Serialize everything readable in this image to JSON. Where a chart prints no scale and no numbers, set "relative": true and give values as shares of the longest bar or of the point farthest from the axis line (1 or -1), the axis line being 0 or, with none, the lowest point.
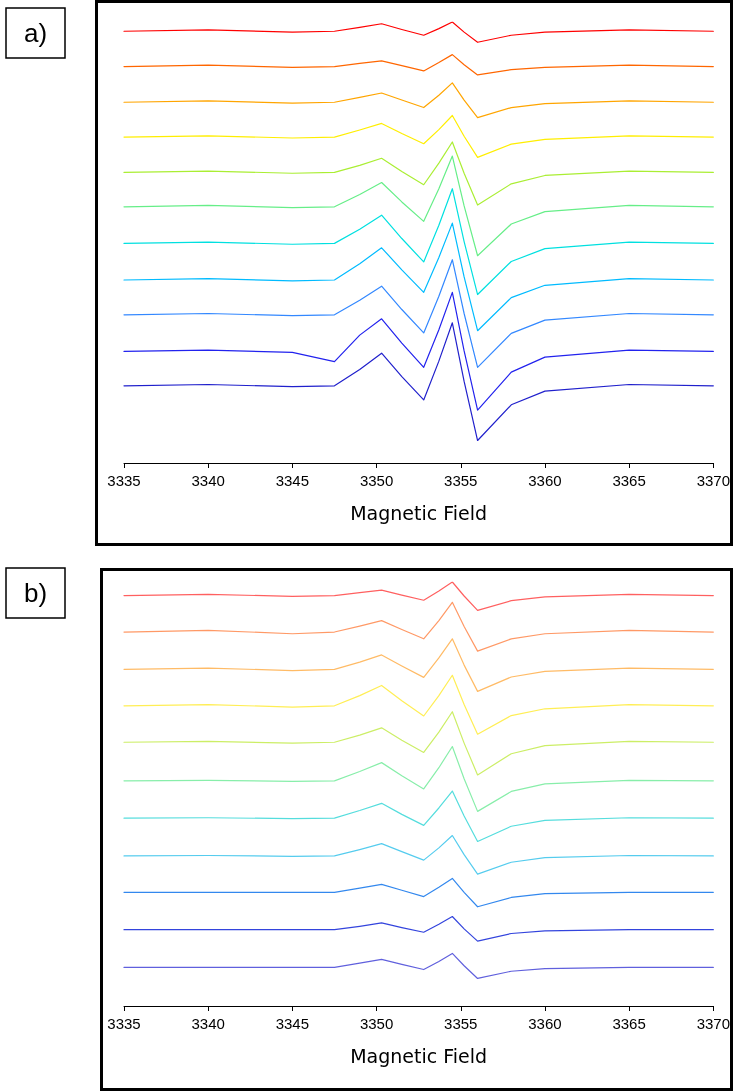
{
  "chart_data": [
    {
      "type": "line",
      "title": "a)",
      "xlabel": "Magnetic Field",
      "relative": true,
      "xlim": [
        3335,
        3370
      ],
      "xticks": [
        3335,
        3340,
        3345,
        3350,
        3355,
        3360,
        3365,
        3370
      ],
      "x": [
        3335,
        3340,
        3345,
        3347.5,
        3349,
        3350.3,
        3351.5,
        3352.8,
        3353.7,
        3354.5,
        3355.2,
        3356,
        3358,
        3360,
        3365,
        3370
      ],
      "series": [
        {
          "color": "#ff0000",
          "values": [
            0.979,
            0.982,
            0.977,
            0.979,
            0.988,
            0.996,
            0.983,
            0.97,
            0.985,
            1.0,
            0.977,
            0.954,
            0.97,
            0.977,
            0.982,
            0.979
          ]
        },
        {
          "color": "#ff6600",
          "values": [
            0.899,
            0.902,
            0.897,
            0.899,
            0.906,
            0.912,
            0.901,
            0.889,
            0.908,
            0.926,
            0.903,
            0.88,
            0.892,
            0.897,
            0.902,
            0.899
          ]
        },
        {
          "color": "#ffa500",
          "values": [
            0.818,
            0.821,
            0.816,
            0.818,
            0.829,
            0.839,
            0.823,
            0.806,
            0.834,
            0.862,
            0.823,
            0.783,
            0.806,
            0.815,
            0.821,
            0.818
          ]
        },
        {
          "color": "#ffee00",
          "values": [
            0.739,
            0.742,
            0.737,
            0.739,
            0.755,
            0.77,
            0.747,
            0.724,
            0.756,
            0.788,
            0.741,
            0.693,
            0.723,
            0.734,
            0.742,
            0.739
          ]
        },
        {
          "color": "#aaee33",
          "values": [
            0.659,
            0.662,
            0.657,
            0.659,
            0.675,
            0.691,
            0.661,
            0.631,
            0.68,
            0.728,
            0.657,
            0.585,
            0.633,
            0.652,
            0.662,
            0.659
          ]
        },
        {
          "color": "#66ee88",
          "values": [
            0.581,
            0.584,
            0.579,
            0.581,
            0.609,
            0.636,
            0.592,
            0.548,
            0.622,
            0.696,
            0.583,
            0.47,
            0.542,
            0.57,
            0.584,
            0.581
          ]
        },
        {
          "color": "#00e0e0",
          "values": [
            0.498,
            0.501,
            0.496,
            0.498,
            0.53,
            0.562,
            0.509,
            0.456,
            0.539,
            0.622,
            0.502,
            0.382,
            0.457,
            0.486,
            0.501,
            0.498
          ]
        },
        {
          "color": "#00bbff",
          "values": [
            0.415,
            0.418,
            0.413,
            0.415,
            0.452,
            0.488,
            0.438,
            0.387,
            0.466,
            0.544,
            0.422,
            0.3,
            0.375,
            0.403,
            0.418,
            0.415
          ]
        },
        {
          "color": "#3388ff",
          "values": [
            0.336,
            0.339,
            0.334,
            0.336,
            0.369,
            0.401,
            0.348,
            0.295,
            0.378,
            0.461,
            0.339,
            0.217,
            0.294,
            0.324,
            0.339,
            0.336
          ]
        },
        {
          "color": "#2222ee",
          "values": [
            0.253,
            0.256,
            0.251,
            0.23,
            0.29,
            0.327,
            0.272,
            0.217,
            0.302,
            0.387,
            0.254,
            0.12,
            0.206,
            0.24,
            0.256,
            0.253
          ]
        },
        {
          "color": "#2020cc",
          "values": [
            0.175,
            0.178,
            0.173,
            0.175,
            0.212,
            0.249,
            0.196,
            0.143,
            0.231,
            0.318,
            0.185,
            0.051,
            0.132,
            0.163,
            0.178,
            0.175
          ]
        }
      ]
    },
    {
      "type": "line",
      "title": "b)",
      "xlabel": "Magnetic Field",
      "relative": true,
      "xlim": [
        3335,
        3370
      ],
      "xticks": [
        3335,
        3340,
        3345,
        3350,
        3355,
        3360,
        3365,
        3370
      ],
      "x": [
        3335,
        3340,
        3345,
        3347.5,
        3349,
        3350.3,
        3351.5,
        3352.8,
        3353.7,
        3354.5,
        3355.2,
        3356,
        3358,
        3360,
        3365,
        3370
      ],
      "series": [
        {
          "color": "#ff6060",
          "values": [
            0.968,
            0.971,
            0.966,
            0.968,
            0.975,
            0.981,
            0.969,
            0.957,
            0.979,
            1.0,
            0.967,
            0.933,
            0.956,
            0.965,
            0.971,
            0.968
          ]
        },
        {
          "color": "#ff9966",
          "values": [
            0.882,
            0.886,
            0.878,
            0.882,
            0.896,
            0.909,
            0.888,
            0.866,
            0.909,
            0.952,
            0.895,
            0.837,
            0.866,
            0.878,
            0.886,
            0.882
          ]
        },
        {
          "color": "#ffbb66",
          "values": [
            0.794,
            0.797,
            0.791,
            0.794,
            0.811,
            0.828,
            0.802,
            0.775,
            0.821,
            0.866,
            0.804,
            0.742,
            0.776,
            0.789,
            0.797,
            0.794
          ]
        },
        {
          "color": "#ffee55",
          "values": [
            0.708,
            0.711,
            0.705,
            0.708,
            0.732,
            0.756,
            0.72,
            0.684,
            0.732,
            0.78,
            0.711,
            0.641,
            0.685,
            0.701,
            0.711,
            0.708
          ]
        },
        {
          "color": "#ccee66",
          "values": [
            0.622,
            0.624,
            0.62,
            0.622,
            0.639,
            0.656,
            0.627,
            0.598,
            0.646,
            0.694,
            0.62,
            0.545,
            0.595,
            0.614,
            0.624,
            0.622
          ]
        },
        {
          "color": "#88eeaa",
          "values": [
            0.531,
            0.532,
            0.53,
            0.531,
            0.553,
            0.574,
            0.543,
            0.512,
            0.562,
            0.612,
            0.536,
            0.459,
            0.506,
            0.524,
            0.532,
            0.531
          ]
        },
        {
          "color": "#55dddd",
          "values": [
            0.443,
            0.444,
            0.442,
            0.443,
            0.461,
            0.478,
            0.452,
            0.426,
            0.467,
            0.507,
            0.448,
            0.388,
            0.424,
            0.438,
            0.444,
            0.443
          ]
        },
        {
          "color": "#55ccee",
          "values": [
            0.354,
            0.355,
            0.353,
            0.354,
            0.369,
            0.383,
            0.364,
            0.344,
            0.373,
            0.402,
            0.357,
            0.311,
            0.339,
            0.35,
            0.355,
            0.354
          ]
        },
        {
          "color": "#3388ee",
          "values": [
            0.268,
            0.268,
            0.268,
            0.268,
            0.278,
            0.287,
            0.273,
            0.258,
            0.28,
            0.301,
            0.268,
            0.234,
            0.256,
            0.265,
            0.268,
            0.268
          ]
        },
        {
          "color": "#3344dd",
          "values": [
            0.18,
            0.18,
            0.18,
            0.18,
            0.188,
            0.196,
            0.185,
            0.174,
            0.193,
            0.211,
            0.182,
            0.153,
            0.171,
            0.177,
            0.18,
            0.18
          ]
        },
        {
          "color": "#6060dd",
          "values": [
            0.091,
            0.091,
            0.091,
            0.091,
            0.101,
            0.11,
            0.098,
            0.086,
            0.105,
            0.124,
            0.095,
            0.065,
            0.082,
            0.088,
            0.091,
            0.091
          ]
        }
      ]
    }
  ]
}
